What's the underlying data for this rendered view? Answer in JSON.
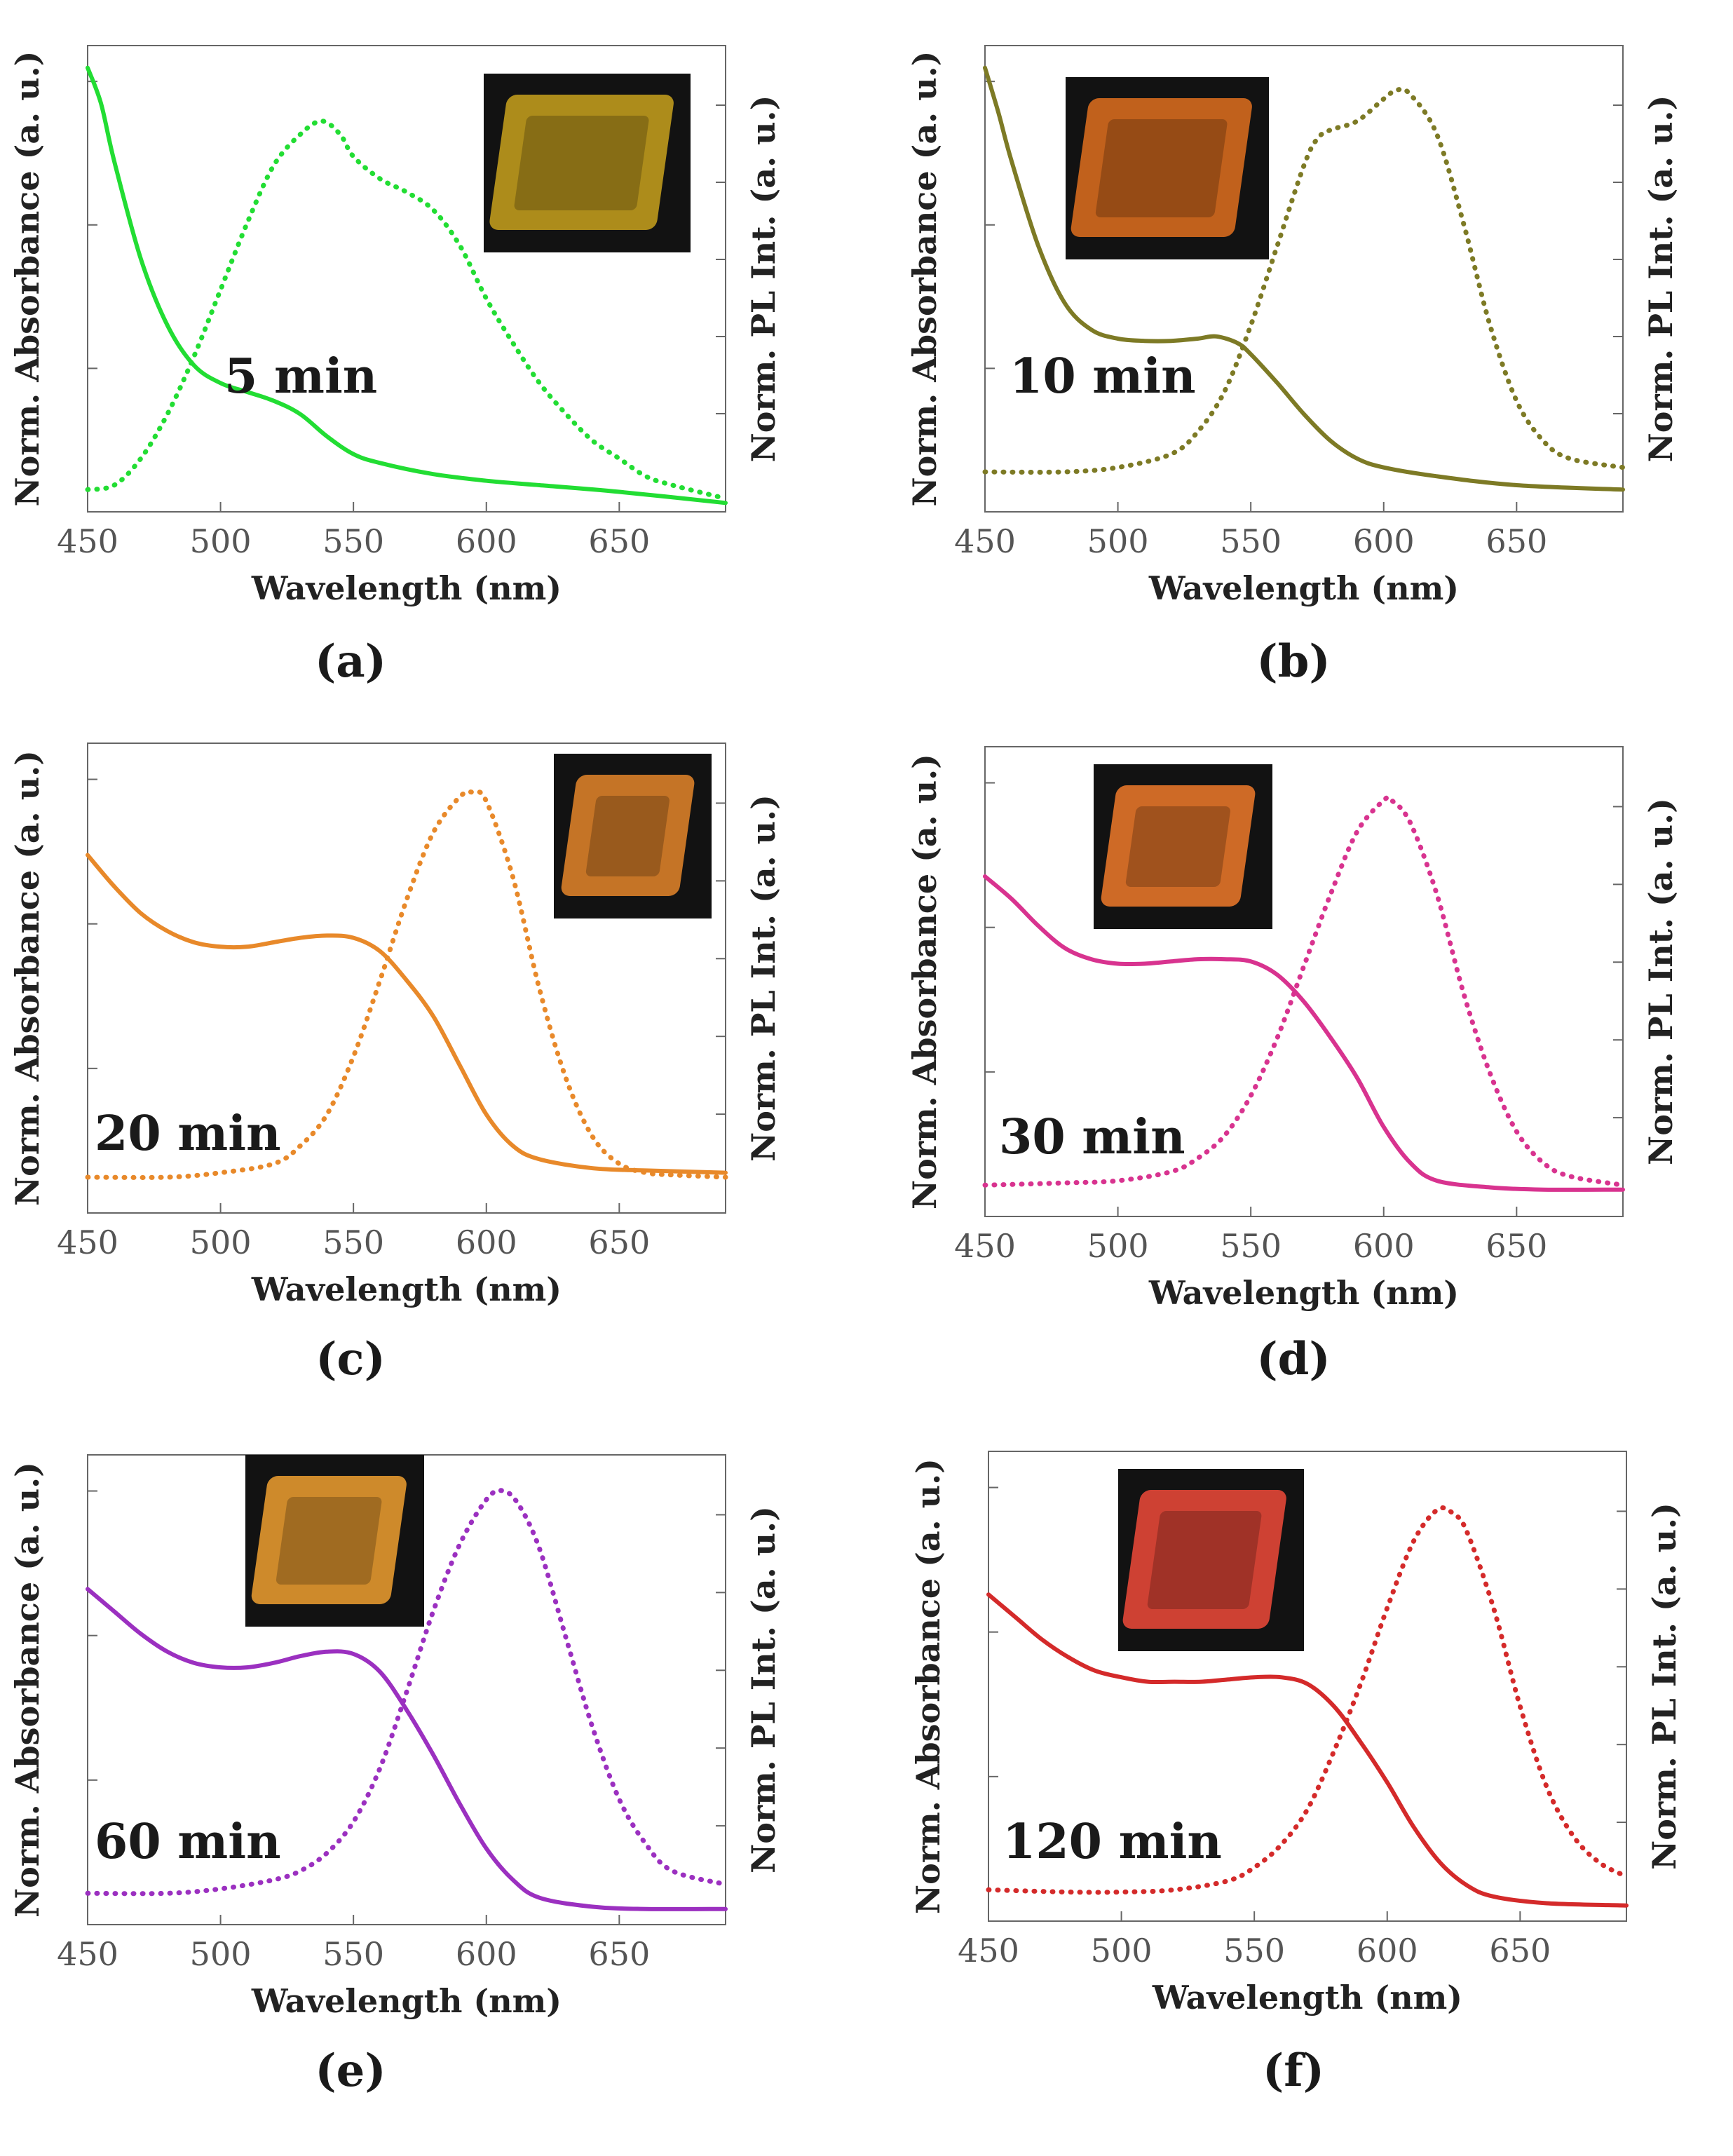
{
  "figure": {
    "panels": [
      "(a)",
      "(b)",
      "(c)",
      "(d)",
      "(e)",
      "(f)"
    ]
  },
  "chart_data": [
    {
      "type": "line",
      "panel_label": "(a)",
      "annotation": "5 min",
      "xlabel": "Wavelength (nm)",
      "ylabel_left": "Norm. Absorbance (a. u.)",
      "ylabel_right": "Norm. PL Int. (a. u.)",
      "xlim": [
        450,
        690
      ],
      "ylim": [
        0,
        1.05
      ],
      "xticks": [
        "450",
        "500",
        "550",
        "600",
        "650"
      ],
      "color": "#22dd33",
      "inset_tint": "#c9a21d",
      "series": [
        {
          "name": "Absorbance",
          "style": "solid",
          "x": [
            450,
            455,
            460,
            470,
            480,
            490,
            500,
            510,
            520,
            530,
            540,
            550,
            560,
            580,
            600,
            620,
            650,
            690
          ],
          "y": [
            1.0,
            0.92,
            0.79,
            0.57,
            0.42,
            0.33,
            0.29,
            0.27,
            0.25,
            0.22,
            0.17,
            0.13,
            0.11,
            0.085,
            0.07,
            0.06,
            0.045,
            0.02
          ]
        },
        {
          "name": "PL",
          "style": "dotted",
          "x": [
            450,
            460,
            470,
            480,
            490,
            500,
            510,
            520,
            530,
            538,
            545,
            550,
            560,
            570,
            580,
            590,
            600,
            610,
            620,
            630,
            640,
            650,
            660,
            670,
            690
          ],
          "y": [
            0.05,
            0.06,
            0.12,
            0.22,
            0.35,
            0.5,
            0.65,
            0.78,
            0.85,
            0.88,
            0.85,
            0.8,
            0.75,
            0.72,
            0.68,
            0.6,
            0.48,
            0.38,
            0.29,
            0.22,
            0.16,
            0.12,
            0.08,
            0.06,
            0.03
          ]
        }
      ]
    },
    {
      "type": "line",
      "panel_label": "(b)",
      "annotation": "10 min",
      "xlabel": "Wavelength (nm)",
      "ylabel_left": "Norm. Absorbance (a. u.)",
      "ylabel_right": "Norm. PL Int. (a. u.)",
      "xlim": [
        450,
        690
      ],
      "ylim": [
        0,
        1.05
      ],
      "xticks": [
        "450",
        "500",
        "550",
        "600",
        "650"
      ],
      "color": "#7d7a25",
      "inset_tint": "#e0701e",
      "series": [
        {
          "name": "Absorbance",
          "style": "solid",
          "x": [
            450,
            455,
            460,
            470,
            480,
            490,
            500,
            510,
            520,
            530,
            537,
            545,
            550,
            560,
            570,
            580,
            590,
            600,
            620,
            650,
            690
          ],
          "y": [
            1.0,
            0.9,
            0.79,
            0.6,
            0.47,
            0.41,
            0.39,
            0.385,
            0.385,
            0.39,
            0.395,
            0.38,
            0.355,
            0.29,
            0.22,
            0.16,
            0.12,
            0.1,
            0.08,
            0.06,
            0.05
          ]
        },
        {
          "name": "PL",
          "style": "dotted",
          "x": [
            450,
            480,
            500,
            520,
            530,
            540,
            550,
            560,
            570,
            575,
            580,
            590,
            600,
            605,
            610,
            620,
            630,
            640,
            650,
            660,
            670,
            690
          ],
          "y": [
            0.09,
            0.09,
            0.1,
            0.13,
            0.18,
            0.27,
            0.42,
            0.6,
            0.78,
            0.84,
            0.86,
            0.88,
            0.93,
            0.95,
            0.94,
            0.85,
            0.65,
            0.42,
            0.25,
            0.16,
            0.12,
            0.1
          ]
        }
      ]
    },
    {
      "type": "line",
      "panel_label": "(c)",
      "annotation": "20 min",
      "xlabel": "Wavelength (nm)",
      "ylabel_left": "Norm. Absorbance (a. u.)",
      "ylabel_right": "Norm. PL Int. (a. u.)",
      "xlim": [
        450,
        690
      ],
      "ylim": [
        0,
        1.05
      ],
      "xticks": [
        "450",
        "500",
        "550",
        "600",
        "650"
      ],
      "color": "#e8892a",
      "inset_tint": "#e5862a",
      "series": [
        {
          "name": "Absorbance",
          "style": "solid",
          "x": [
            450,
            460,
            470,
            480,
            490,
            500,
            510,
            520,
            530,
            540,
            550,
            560,
            570,
            580,
            590,
            600,
            610,
            620,
            640,
            660,
            690
          ],
          "y": [
            0.8,
            0.73,
            0.67,
            0.63,
            0.605,
            0.595,
            0.595,
            0.605,
            0.615,
            0.62,
            0.615,
            0.585,
            0.52,
            0.44,
            0.33,
            0.22,
            0.15,
            0.12,
            0.1,
            0.095,
            0.09
          ]
        },
        {
          "name": "PL",
          "style": "dotted",
          "x": [
            450,
            480,
            500,
            520,
            530,
            540,
            550,
            560,
            570,
            580,
            590,
            595,
            600,
            610,
            620,
            630,
            640,
            650,
            660,
            670,
            690
          ],
          "y": [
            0.08,
            0.08,
            0.09,
            0.11,
            0.15,
            0.22,
            0.35,
            0.52,
            0.7,
            0.85,
            0.93,
            0.94,
            0.92,
            0.75,
            0.5,
            0.3,
            0.17,
            0.11,
            0.09,
            0.085,
            0.08
          ]
        }
      ]
    },
    {
      "type": "line",
      "panel_label": "(d)",
      "annotation": "30 min",
      "xlabel": "Wavelength (nm)",
      "ylabel_left": "Norm. Absorbance (a. u.)",
      "ylabel_right": "Norm. PL Int. (a. u.)",
      "xlim": [
        450,
        690
      ],
      "ylim": [
        0,
        1.05
      ],
      "xticks": [
        "450",
        "500",
        "550",
        "600",
        "650"
      ],
      "color": "#d8338f",
      "inset_tint": "#f07a2a",
      "series": [
        {
          "name": "Absorbance",
          "style": "solid",
          "x": [
            450,
            460,
            470,
            480,
            490,
            500,
            510,
            520,
            530,
            540,
            550,
            560,
            570,
            580,
            590,
            600,
            610,
            620,
            640,
            660,
            690
          ],
          "y": [
            0.76,
            0.71,
            0.65,
            0.6,
            0.575,
            0.565,
            0.565,
            0.57,
            0.575,
            0.575,
            0.57,
            0.54,
            0.48,
            0.4,
            0.31,
            0.2,
            0.12,
            0.08,
            0.065,
            0.06,
            0.06
          ]
        },
        {
          "name": "PL",
          "style": "dotted",
          "x": [
            450,
            480,
            500,
            520,
            530,
            540,
            550,
            560,
            570,
            580,
            590,
            600,
            603,
            610,
            620,
            630,
            640,
            650,
            660,
            670,
            690
          ],
          "y": [
            0.07,
            0.075,
            0.08,
            0.1,
            0.13,
            0.18,
            0.27,
            0.4,
            0.56,
            0.72,
            0.86,
            0.93,
            0.93,
            0.88,
            0.72,
            0.5,
            0.32,
            0.19,
            0.12,
            0.09,
            0.07
          ]
        }
      ]
    },
    {
      "type": "line",
      "panel_label": "(e)",
      "annotation": "60 min",
      "xlabel": "Wavelength (nm)",
      "ylabel_left": "Norm. Absorbance (a. u.)",
      "ylabel_right": "Norm. PL Int. (a. u.)",
      "xlim": [
        450,
        690
      ],
      "ylim": [
        0,
        1.05
      ],
      "xticks": [
        "450",
        "500",
        "550",
        "600",
        "650"
      ],
      "color": "#9b30c0",
      "inset_tint": "#f0a030",
      "series": [
        {
          "name": "Absorbance",
          "style": "solid",
          "x": [
            450,
            460,
            470,
            480,
            490,
            500,
            510,
            520,
            530,
            540,
            550,
            560,
            570,
            580,
            590,
            600,
            610,
            620,
            640,
            660,
            690
          ],
          "y": [
            0.75,
            0.7,
            0.65,
            0.61,
            0.585,
            0.575,
            0.575,
            0.585,
            0.6,
            0.61,
            0.605,
            0.565,
            0.48,
            0.38,
            0.27,
            0.17,
            0.1,
            0.06,
            0.04,
            0.035,
            0.035
          ]
        },
        {
          "name": "PL",
          "style": "dotted",
          "x": [
            450,
            480,
            500,
            520,
            530,
            540,
            550,
            560,
            570,
            580,
            590,
            600,
            606,
            612,
            620,
            630,
            640,
            650,
            660,
            670,
            690
          ],
          "y": [
            0.07,
            0.07,
            0.08,
            0.1,
            0.12,
            0.16,
            0.23,
            0.35,
            0.52,
            0.7,
            0.85,
            0.95,
            0.97,
            0.94,
            0.84,
            0.64,
            0.44,
            0.28,
            0.18,
            0.12,
            0.09
          ]
        }
      ]
    },
    {
      "type": "line",
      "panel_label": "(f)",
      "annotation": "120 min",
      "xlabel": "Wavelength (nm)",
      "ylabel_left": "Norm. Absorbance (a. u.)",
      "ylabel_right": "Norm. PL Int. (a. u.)",
      "xlim": [
        450,
        690
      ],
      "ylim": [
        0,
        1.05
      ],
      "xticks": [
        "450",
        "500",
        "550",
        "600",
        "650"
      ],
      "color": "#d42a2a",
      "inset_tint": "#f04a3a",
      "series": [
        {
          "name": "Absorbance",
          "style": "solid",
          "x": [
            450,
            460,
            470,
            480,
            490,
            500,
            510,
            520,
            530,
            540,
            550,
            560,
            570,
            580,
            590,
            600,
            610,
            620,
            630,
            640,
            660,
            690
          ],
          "y": [
            0.73,
            0.68,
            0.63,
            0.59,
            0.56,
            0.545,
            0.535,
            0.535,
            0.535,
            0.54,
            0.545,
            0.545,
            0.53,
            0.48,
            0.4,
            0.31,
            0.21,
            0.13,
            0.08,
            0.055,
            0.04,
            0.035
          ]
        },
        {
          "name": "PL",
          "style": "dotted",
          "x": [
            450,
            480,
            500,
            520,
            540,
            550,
            560,
            570,
            580,
            590,
            600,
            610,
            619,
            625,
            630,
            640,
            650,
            660,
            670,
            680,
            690
          ],
          "y": [
            0.07,
            0.065,
            0.065,
            0.07,
            0.09,
            0.12,
            0.17,
            0.25,
            0.38,
            0.53,
            0.7,
            0.85,
            0.92,
            0.91,
            0.87,
            0.7,
            0.48,
            0.3,
            0.19,
            0.13,
            0.1
          ]
        }
      ]
    }
  ]
}
